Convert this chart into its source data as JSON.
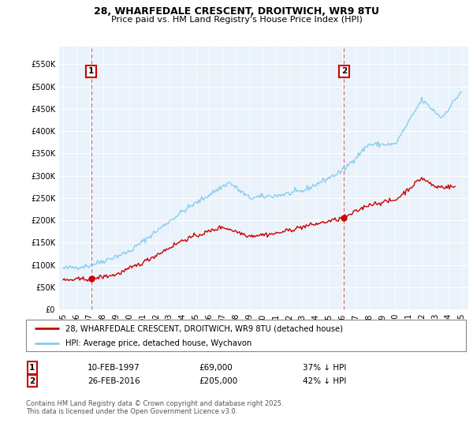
{
  "title_line1": "28, WHARFEDALE CRESCENT, DROITWICH, WR9 8TU",
  "title_line2": "Price paid vs. HM Land Registry's House Price Index (HPI)",
  "ylabel_ticks": [
    "£0",
    "£50K",
    "£100K",
    "£150K",
    "£200K",
    "£250K",
    "£300K",
    "£350K",
    "£400K",
    "£450K",
    "£500K",
    "£550K"
  ],
  "ytick_values": [
    0,
    50000,
    100000,
    150000,
    200000,
    250000,
    300000,
    350000,
    400000,
    450000,
    500000,
    550000
  ],
  "ylim": [
    0,
    590000
  ],
  "xlim_start": 1994.7,
  "xlim_end": 2025.5,
  "hpi_color": "#87CEEB",
  "price_color": "#CC0000",
  "marker1_date": 1997.11,
  "marker1_price": 69000,
  "marker1_label": "1",
  "marker1_text": "10-FEB-1997",
  "marker1_value": "£69,000",
  "marker1_hpi": "37% ↓ HPI",
  "marker2_date": 2016.15,
  "marker2_price": 205000,
  "marker2_label": "2",
  "marker2_text": "26-FEB-2016",
  "marker2_value": "£205,000",
  "marker2_hpi": "42% ↓ HPI",
  "legend_label1": "28, WHARFEDALE CRESCENT, DROITWICH, WR9 8TU (detached house)",
  "legend_label2": "HPI: Average price, detached house, Wychavon",
  "footnote": "Contains HM Land Registry data © Crown copyright and database right 2025.\nThis data is licensed under the Open Government Licence v3.0.",
  "plot_bg_color": "#EAF2FB",
  "fig_bg_color": "#FFFFFF",
  "grid_color": "#FFFFFF",
  "xtick_years": [
    1995,
    1996,
    1997,
    1998,
    1999,
    2000,
    2001,
    2002,
    2003,
    2004,
    2005,
    2006,
    2007,
    2008,
    2009,
    2010,
    2011,
    2012,
    2013,
    2014,
    2015,
    2016,
    2017,
    2018,
    2019,
    2020,
    2021,
    2022,
    2023,
    2024,
    2025
  ],
  "hpi_anchors_x": [
    1995.0,
    1997.0,
    2000.0,
    2004.0,
    2007.5,
    2009.0,
    2011.0,
    2013.0,
    2016.0,
    2018.0,
    2020.0,
    2022.0,
    2023.5,
    2025.0
  ],
  "hpi_anchors_y": [
    92000,
    98000,
    130000,
    220000,
    285000,
    250000,
    255000,
    265000,
    310000,
    370000,
    370000,
    470000,
    430000,
    490000
  ],
  "price_anchors_x": [
    1995.0,
    1997.11,
    1999.0,
    2001.0,
    2004.0,
    2007.0,
    2009.0,
    2011.0,
    2013.0,
    2016.15,
    2018.0,
    2020.0,
    2022.0,
    2023.0,
    2024.5
  ],
  "price_anchors_y": [
    65000,
    69000,
    78000,
    105000,
    155000,
    185000,
    165000,
    170000,
    185000,
    205000,
    235000,
    245000,
    295000,
    275000,
    275000
  ],
  "hpi_noise_std": 3000,
  "price_noise_std": 2500,
  "random_seed": 42
}
